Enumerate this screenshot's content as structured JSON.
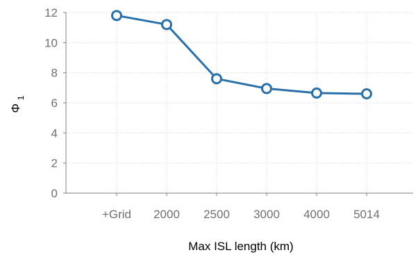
{
  "chart_data": {
    "type": "line",
    "categories": [
      "+Grid",
      "2000",
      "2500",
      "3000",
      "4000",
      "5014"
    ],
    "series": [
      {
        "values": [
          11.8,
          11.2,
          7.6,
          6.95,
          6.65,
          6.6
        ]
      }
    ],
    "xlabel": "Max ISL length (km)",
    "ylabel": "Φ",
    "ylabel_subscript": "1",
    "ylim": [
      0,
      12
    ],
    "yticks": [
      0,
      2,
      4,
      6,
      8,
      10,
      12
    ],
    "grid": true,
    "line_color": "#2a6fa8",
    "marker": "open-circle"
  }
}
